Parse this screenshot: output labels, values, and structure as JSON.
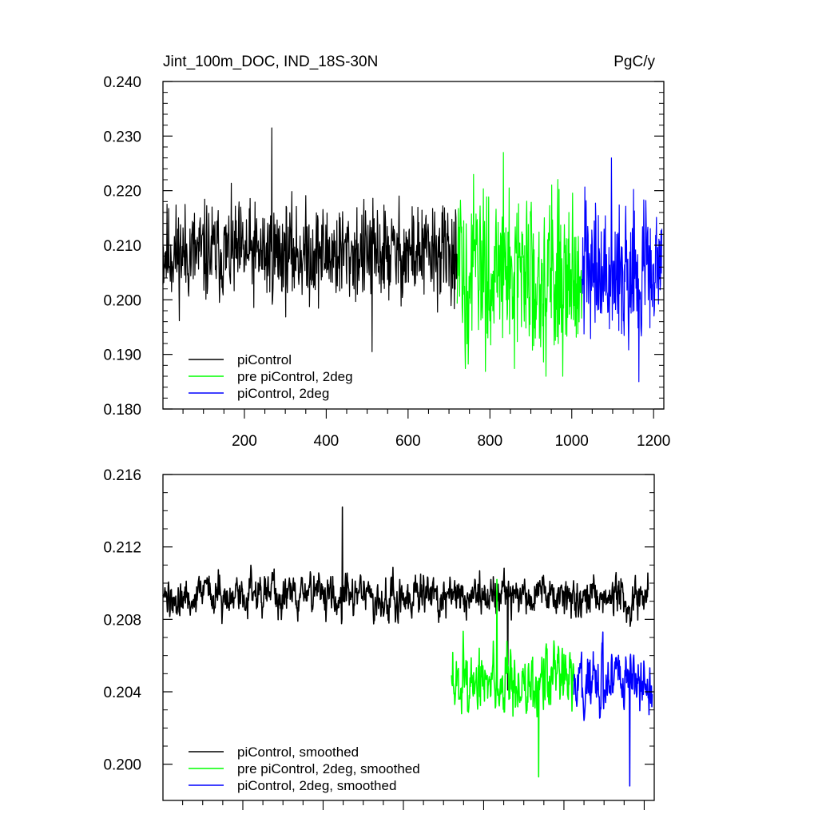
{
  "figure": {
    "title_left": "Jint_100m_DOC, IND_18S-30N",
    "title_right": "PgC/y"
  },
  "colors": {
    "piControl": "#000000",
    "pre_piControl_2deg": "#00ff00",
    "piControl_2deg": "#0000ff",
    "axes": "#000000",
    "background": "#ffffff"
  },
  "chart_data": [
    {
      "type": "line",
      "panel": "top",
      "title": "Jint_100m_DOC, IND_18S-30N",
      "units": "PgC/y",
      "xlim": [
        1,
        1225
      ],
      "ylim": [
        0.18,
        0.24
      ],
      "x_ticks": [
        200,
        400,
        600,
        800,
        1000,
        1200
      ],
      "x_tick_labels": [
        "200",
        "400",
        "600",
        "800",
        "1000",
        "1200"
      ],
      "y_ticks": [
        0.18,
        0.19,
        0.2,
        0.21,
        0.22,
        0.23,
        0.24
      ],
      "y_tick_labels": [
        "0.180",
        "0.190",
        "0.200",
        "0.210",
        "0.220",
        "0.230",
        "0.240"
      ],
      "grid": false,
      "legend_position": "bottom-left",
      "series": [
        {
          "name": "piControl",
          "color": "#000000",
          "x_start": 1,
          "x_end": 720,
          "mean": 0.2085,
          "spread": 0.0045,
          "min": 0.1905,
          "max": 0.2315
        },
        {
          "name": "pre piControl, 2deg",
          "color": "#00ff00",
          "x_start": 720,
          "x_end": 1025,
          "mean": 0.205,
          "spread": 0.0075,
          "min": 0.186,
          "max": 0.227
        },
        {
          "name": "piControl, 2deg",
          "color": "#0000ff",
          "x_start": 1025,
          "x_end": 1220,
          "mean": 0.2055,
          "spread": 0.0065,
          "min": 0.185,
          "max": 0.226
        }
      ]
    },
    {
      "type": "line",
      "panel": "bottom",
      "xlim": [
        1,
        1225
      ],
      "ylim": [
        0.198,
        0.216
      ],
      "x_ticks": [
        200,
        400,
        600,
        800,
        1000,
        1200
      ],
      "y_ticks": [
        0.2,
        0.204,
        0.208,
        0.212,
        0.216
      ],
      "y_tick_labels": [
        "0.200",
        "0.204",
        "0.208",
        "0.212",
        "0.216"
      ],
      "grid": false,
      "legend_position": "bottom-left",
      "series": [
        {
          "name": "piControl, smoothed",
          "color": "#000000",
          "x_start": 1,
          "x_end": 1210,
          "mean": 0.2093,
          "spread": 0.0011,
          "min": 0.2041,
          "max": 0.2142
        },
        {
          "name": "pre piControl, 2deg, smoothed",
          "color": "#00ff00",
          "x_start": 720,
          "x_end": 1025,
          "mean": 0.2045,
          "spread": 0.0018,
          "min": 0.1993,
          "max": 0.2102
        },
        {
          "name": "piControl, 2deg, smoothed",
          "color": "#0000ff",
          "x_start": 1025,
          "x_end": 1220,
          "mean": 0.2045,
          "spread": 0.0015,
          "min": 0.1988,
          "max": 0.2073
        }
      ]
    }
  ]
}
